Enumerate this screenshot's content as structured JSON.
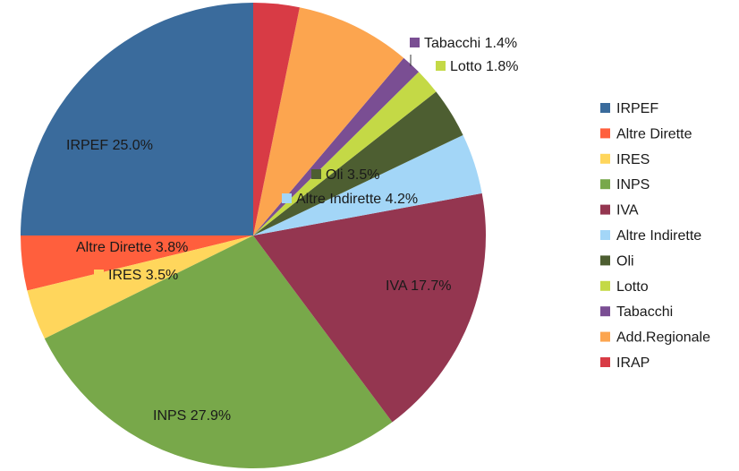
{
  "chart_data": {
    "type": "pie",
    "title": "",
    "legend_position": "right",
    "slices": [
      {
        "name": "IRPEF",
        "value": 25.0,
        "label": "IRPEF 25.0%",
        "color": "#3a6b9c"
      },
      {
        "name": "Altre Dirette",
        "value": 3.8,
        "label": "Altre Dirette 3.8%",
        "color": "#ff5f3d"
      },
      {
        "name": "IRES",
        "value": 3.5,
        "label": "IRES 3.5%",
        "color": "#ffd65c"
      },
      {
        "name": "INPS",
        "value": 27.9,
        "label": "INPS 27.9%",
        "color": "#78a84a"
      },
      {
        "name": "IVA",
        "value": 17.7,
        "label": "IVA 17.7%",
        "color": "#943650"
      },
      {
        "name": "Altre Indirette",
        "value": 4.2,
        "label": "Altre Indirette 4.2%",
        "color": "#a3d6f7"
      },
      {
        "name": "Oli",
        "value": 3.5,
        "label": "Oli 3.5%",
        "color": "#4d5e31"
      },
      {
        "name": "Lotto",
        "value": 1.8,
        "label": "Lotto 1.8%",
        "color": "#c4d946"
      },
      {
        "name": "Tabacchi",
        "value": 1.4,
        "label": "Tabacchi 1.4%",
        "color": "#7a4e93"
      },
      {
        "name": "Add.Regionale",
        "value": 8.0,
        "label": "",
        "color": "#fca54f"
      },
      {
        "name": "IRAP",
        "value": 3.2,
        "label": "",
        "color": "#d83b45"
      }
    ]
  }
}
